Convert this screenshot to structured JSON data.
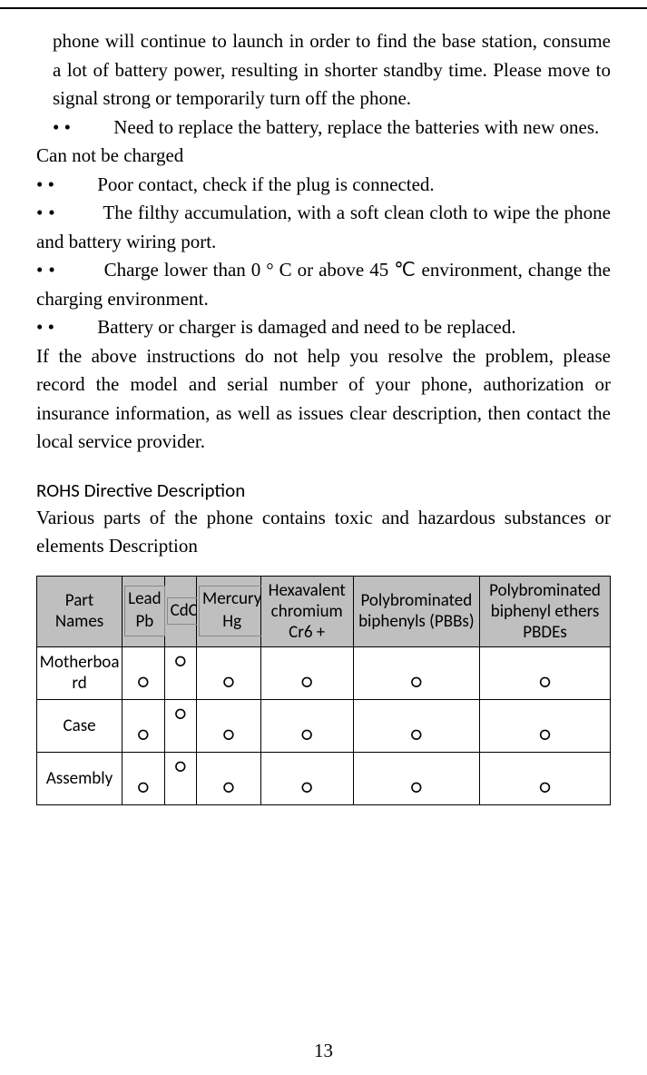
{
  "intro_para": "phone will continue to launch in order to find the base station, consume a lot of battery power, resulting in shorter standby time. Please move to signal strong or temporarily turn off the phone.",
  "bullets1": [
    " Need to replace the battery, replace the batteries with new ones."
  ],
  "section_cannot": "Can not be charged",
  "bullets2": [
    "Poor contact, check if the plug is connected.",
    "The filthy accumulation, with a soft clean cloth to wipe the phone and battery wiring port.",
    "Charge lower than 0 ° C or above 45 ℃ environment, change the charging environment.",
    "Battery or charger is damaged and need to be replaced."
  ],
  "closing_para": "If the above instructions do not help you resolve the problem, please record the model and serial number of your phone, authorization or insurance information, as well as issues clear description, then contact the local service provider.",
  "rohs_heading": "ROHS Directive Description",
  "rohs_desc": " Various parts of the phone contains toxic and hazardous substances or elements Description",
  "table": {
    "headers": {
      "part": "Part Names",
      "pb": "Lead Pb",
      "cd": "CdCd",
      "hg": "Mercury Hg",
      "cr": "Hexavalent chromium Cr6 +",
      "pbb": "Polybrominated biphenyls (PBBs)",
      "pbde": "Polybrominated biphenyl ethers PBDEs"
    },
    "rows": [
      {
        "name": "Motherboard",
        "vals": [
          "○",
          "○",
          "○",
          "○",
          "○",
          "○"
        ]
      },
      {
        "name": "Case",
        "vals": [
          "○",
          "○",
          "○",
          "○",
          "○",
          "○"
        ]
      },
      {
        "name": "Assembly",
        "vals": [
          "○",
          "○",
          "○",
          "○",
          "○",
          "○"
        ]
      }
    ]
  },
  "page_number": "13",
  "colors": {
    "header_bg": "#bfbfbf",
    "border": "#000000",
    "text": "#000000",
    "bg": "#ffffff"
  }
}
